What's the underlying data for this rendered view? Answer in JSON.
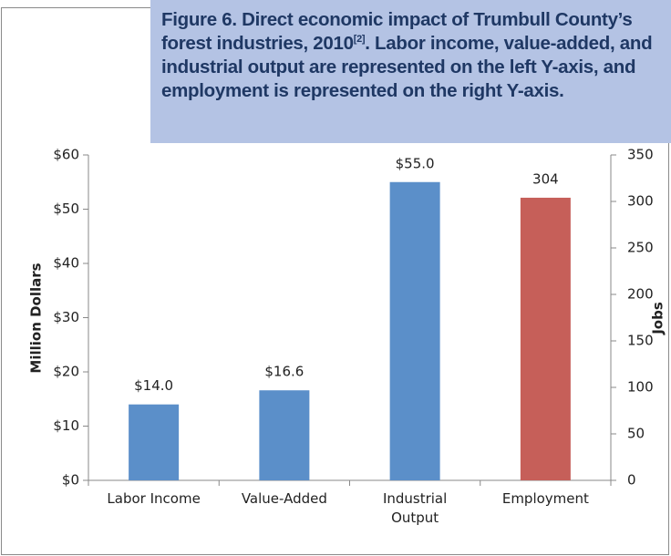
{
  "chart_data": {
    "type": "bar",
    "title": {
      "start": "Figure 6. Direct economic impact of Trumbull County’s forest industries, 2010",
      "superscript": "[2]",
      "end": ". Labor income, value-added, and industrial output are represented on the left Y-axis, and employment is represented on the right Y-axis."
    },
    "categories": [
      "Labor Income",
      "Value-Added",
      "Industrial Output",
      "Employment"
    ],
    "ylabel": "Million Dollars",
    "y2label": "Jobs",
    "series": [
      {
        "color": "#5b8fc9",
        "values": [
          14.0,
          16.6,
          55.0,
          null
        ],
        "value_labels": [
          "$14.0",
          "$16.6",
          "$55.0",
          null
        ]
      },
      {
        "color": "#c65f59",
        "axis": "y2",
        "values": [
          null,
          null,
          null,
          304
        ]
      }
    ],
    "ylim": [
      0,
      60
    ],
    "yticks": [
      {
        "value": 0,
        "label": "$0"
      },
      {
        "value": 10,
        "label": "$10"
      },
      {
        "value": 20,
        "label": "$20"
      },
      {
        "value": 30,
        "label": "$30"
      },
      {
        "value": 40,
        "label": "$40"
      },
      {
        "value": 50,
        "label": "$50"
      },
      {
        "value": 60,
        "label": "$60"
      }
    ],
    "y2lim": [
      0,
      350
    ],
    "y2ticks": [
      0,
      50,
      100,
      150,
      200,
      250,
      300,
      350
    ]
  }
}
